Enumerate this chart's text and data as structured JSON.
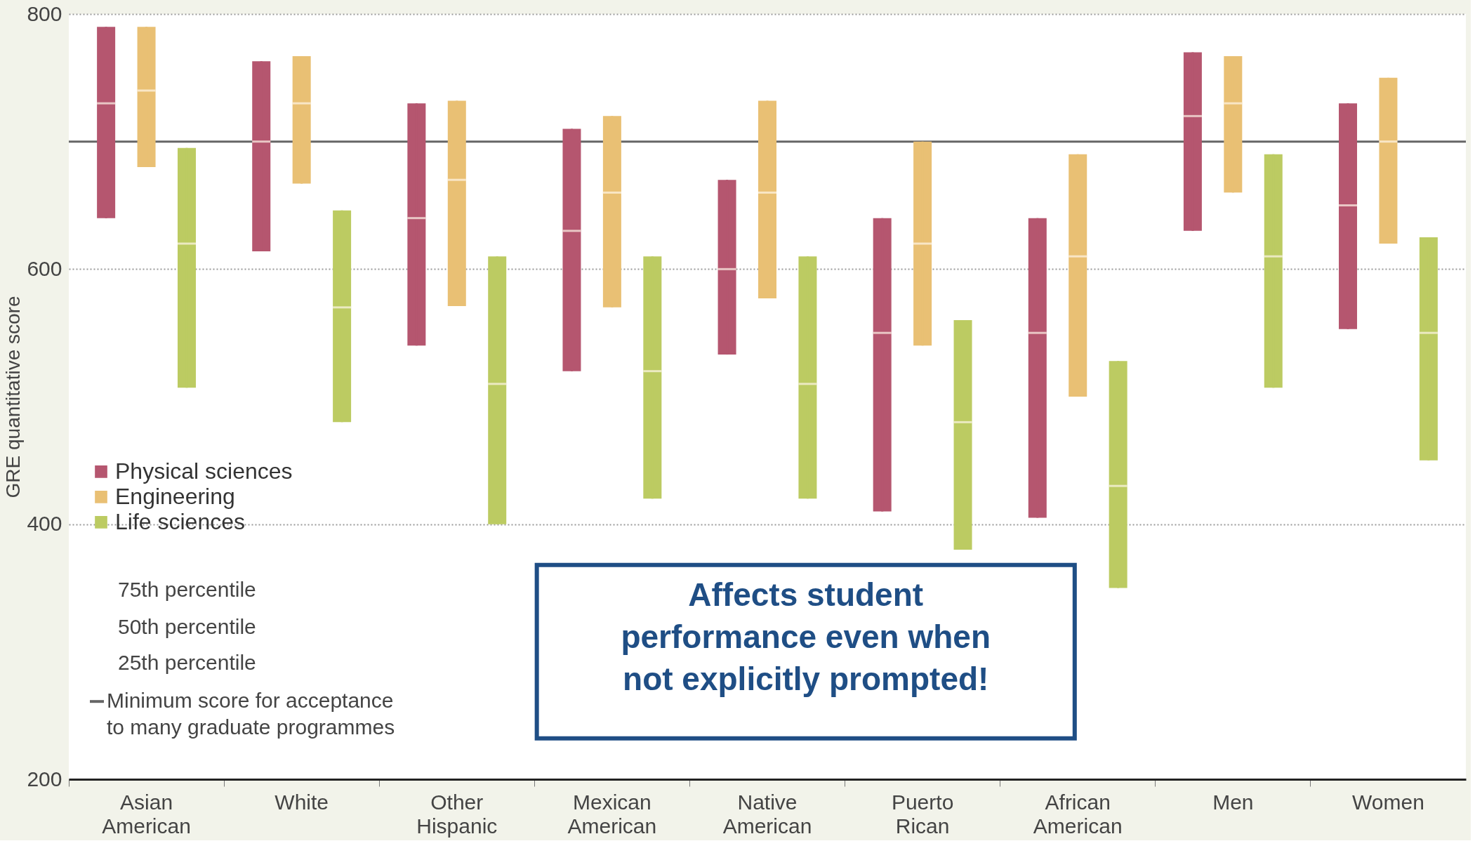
{
  "chart_data": {
    "type": "box",
    "ylabel": "GRE quantitative score",
    "ylim": [
      200,
      800
    ],
    "yticks": [
      200,
      400,
      600,
      800
    ],
    "grid": "y",
    "legend": "bottom left",
    "categories": [
      "Asian American",
      "White",
      "Other Hispanic",
      "Mexican American",
      "Native American",
      "Puerto Rican",
      "African American",
      "Men",
      "Women"
    ],
    "series": [
      {
        "name": "Physical sciences",
        "color": "#b5566f",
        "boxes": [
          {
            "low": 640,
            "q1": 640,
            "median": 730,
            "q3": 790,
            "high": 790
          },
          {
            "low": 614,
            "q1": 614,
            "median": 700,
            "q3": 763,
            "high": 763
          },
          {
            "low": 540,
            "q1": 540,
            "median": 640,
            "q3": 730,
            "high": 730
          },
          {
            "low": 520,
            "q1": 520,
            "median": 630,
            "q3": 710,
            "high": 710
          },
          {
            "low": 533,
            "q1": 533,
            "median": 600,
            "q3": 670,
            "high": 670
          },
          {
            "low": 410,
            "q1": 410,
            "median": 550,
            "q3": 640,
            "high": 640
          },
          {
            "low": 405,
            "q1": 405,
            "median": 550,
            "q3": 640,
            "high": 640
          },
          {
            "low": 630,
            "q1": 630,
            "median": 720,
            "q3": 770,
            "high": 770
          },
          {
            "low": 553,
            "q1": 553,
            "median": 650,
            "q3": 730,
            "high": 730
          }
        ]
      },
      {
        "name": "Engineering",
        "color": "#e9c074",
        "boxes": [
          {
            "low": 680,
            "q1": 680,
            "median": 740,
            "q3": 790,
            "high": 790
          },
          {
            "low": 667,
            "q1": 667,
            "median": 730,
            "q3": 767,
            "high": 767
          },
          {
            "low": 571,
            "q1": 571,
            "median": 670,
            "q3": 732,
            "high": 732
          },
          {
            "low": 570,
            "q1": 570,
            "median": 660,
            "q3": 720,
            "high": 720
          },
          {
            "low": 577,
            "q1": 577,
            "median": 660,
            "q3": 732,
            "high": 732
          },
          {
            "low": 540,
            "q1": 540,
            "median": 620,
            "q3": 700,
            "high": 700
          },
          {
            "low": 500,
            "q1": 500,
            "median": 610,
            "q3": 690,
            "high": 690
          },
          {
            "low": 660,
            "q1": 660,
            "median": 730,
            "q3": 767,
            "high": 767
          },
          {
            "low": 620,
            "q1": 620,
            "median": 700,
            "q3": 750,
            "high": 750
          }
        ]
      },
      {
        "name": "Life sciences",
        "color": "#bccb62",
        "boxes": [
          {
            "low": 507,
            "q1": 507,
            "median": 620,
            "q3": 695,
            "high": 695
          },
          {
            "low": 480,
            "q1": 480,
            "median": 570,
            "q3": 646,
            "high": 646
          },
          {
            "low": 400,
            "q1": 400,
            "median": 510,
            "q3": 610,
            "high": 610
          },
          {
            "low": 420,
            "q1": 420,
            "median": 520,
            "q3": 610,
            "high": 610
          },
          {
            "low": 420,
            "q1": 420,
            "median": 510,
            "q3": 610,
            "high": 610
          },
          {
            "low": 380,
            "q1": 380,
            "median": 480,
            "q3": 560,
            "high": 560
          },
          {
            "low": 350,
            "q1": 350,
            "median": 430,
            "q3": 528,
            "high": 528
          },
          {
            "low": 507,
            "q1": 507,
            "median": 610,
            "q3": 690,
            "high": 690
          },
          {
            "low": 450,
            "q1": 450,
            "median": 550,
            "q3": 625,
            "high": 625
          }
        ]
      }
    ],
    "ref_lines": [
      {
        "axis": "y",
        "value": 700,
        "label": "Minimum score for acceptance to many graduate programmes",
        "color": "#666666"
      }
    ],
    "annotations": [
      "75th percentile",
      "50th percentile",
      "25th percentile",
      "Affects student performance even when not explicitly prompted!"
    ]
  }
}
